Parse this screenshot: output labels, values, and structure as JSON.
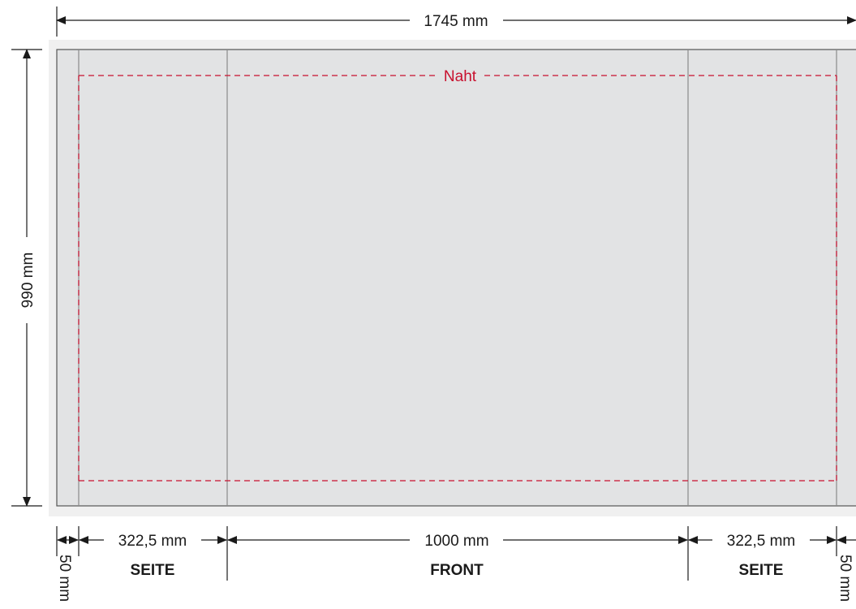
{
  "dimensions": {
    "total_width": "1745 mm",
    "total_height": "990 mm",
    "left_margin": "50 mm",
    "right_margin": "50 mm",
    "left_side_width": "322,5 mm",
    "front_width": "1000 mm",
    "right_side_width": "322,5 mm"
  },
  "panels": {
    "left_label": "SEITE",
    "front_label": "FRONT",
    "right_label": "SEITE"
  },
  "seam": {
    "label": "Naht",
    "color": "#c8102e"
  },
  "colors": {
    "outer_background": "#f0f0f0",
    "panel_fill": "#e2e3e4",
    "fold_line": "#8a8a8a",
    "dimension_line": "#1a1a1a"
  }
}
